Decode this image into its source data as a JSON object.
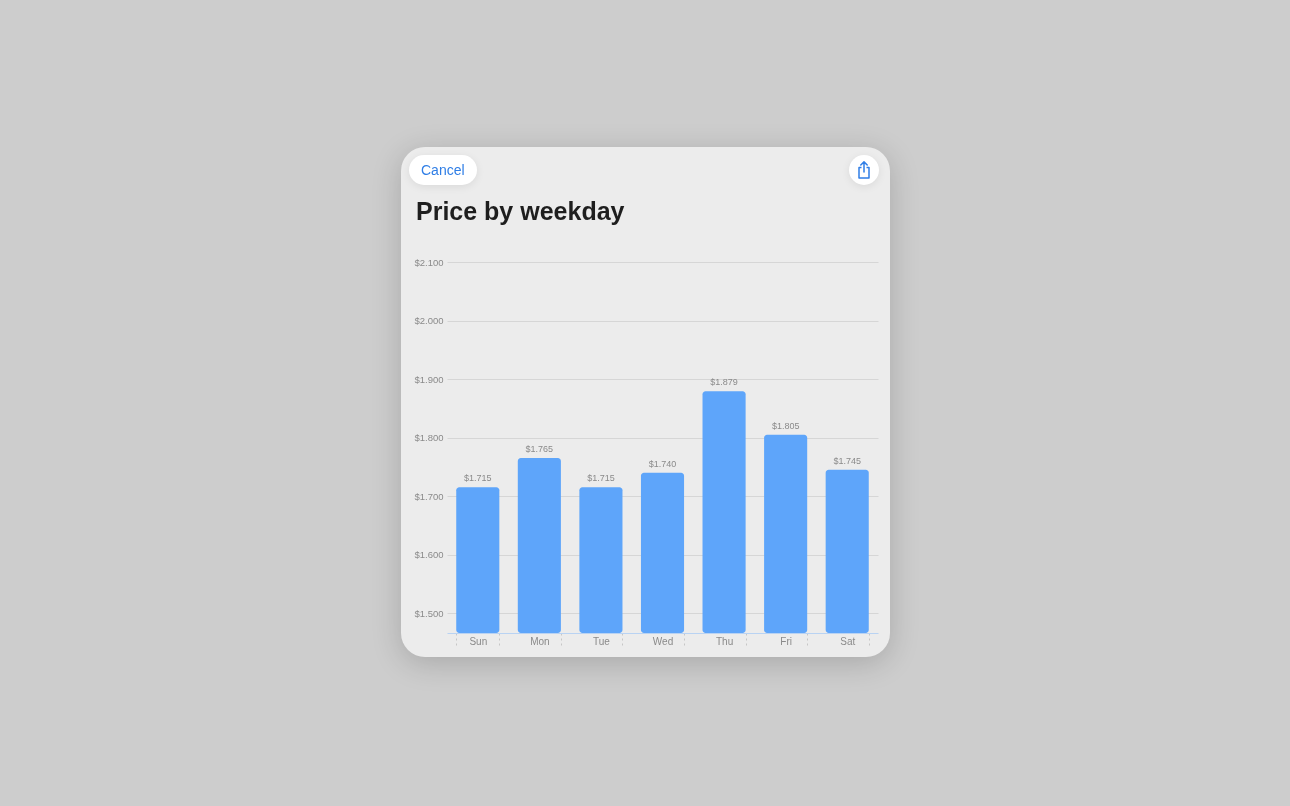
{
  "chart_data": {
    "type": "bar",
    "title": "Price by weekday",
    "categories": [
      "Sun",
      "Mon",
      "Tue",
      "Wed",
      "Thu",
      "Fri",
      "Sat"
    ],
    "values": [
      1.715,
      1.765,
      1.715,
      1.74,
      1.879,
      1.805,
      1.745
    ],
    "value_labels": [
      "$1.715",
      "$1.765",
      "$1.715",
      "$1.740",
      "$1.879",
      "$1.805",
      "$1.745"
    ],
    "color": "#5ea5fa",
    "ylim": [
      1.466,
      2.1
    ],
    "yticks": [
      {
        "value": 1.5,
        "label": "$1.500"
      },
      {
        "value": 1.6,
        "label": "$1.600"
      },
      {
        "value": 1.7,
        "label": "$1.700"
      },
      {
        "value": 1.8,
        "label": "$1.800"
      },
      {
        "value": 1.9,
        "label": "$1.900"
      },
      {
        "value": 2.0,
        "label": "$2.000"
      },
      {
        "value": 2.1,
        "label": "$2.100"
      }
    ],
    "grid": "y",
    "annotations": [
      "Cancel"
    ]
  }
}
